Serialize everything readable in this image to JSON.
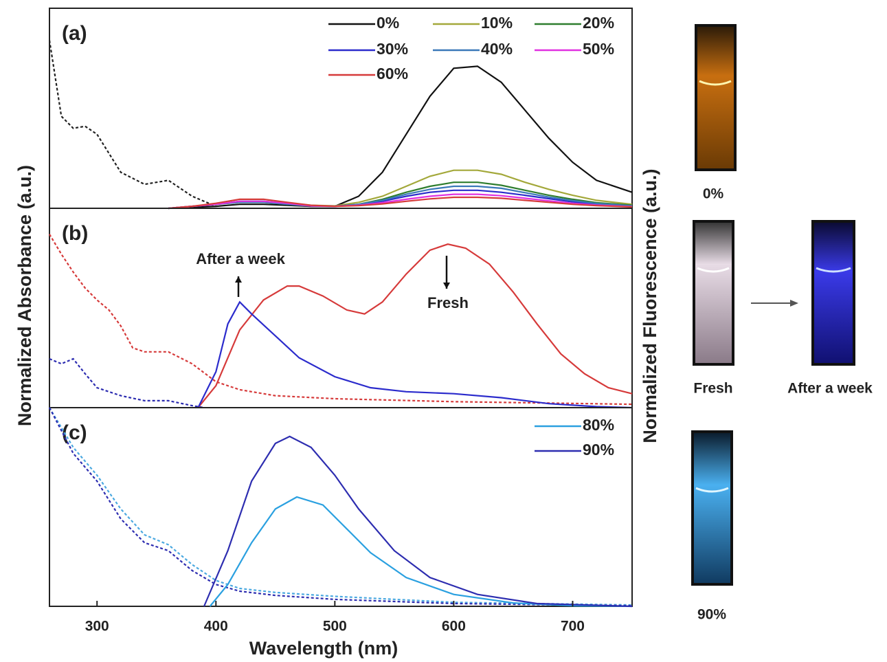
{
  "chart_data": [
    {
      "type": "line",
      "panel_label": "(a)",
      "xlim": [
        260,
        750
      ],
      "ylim": [
        0,
        1
      ],
      "series": [
        {
          "color": "#222222",
          "dash": true,
          "x": [
            260,
            270,
            280,
            290,
            300,
            320,
            340,
            360,
            380,
            400
          ],
          "values": [
            0.84,
            0.46,
            0.4,
            0.41,
            0.37,
            0.18,
            0.12,
            0.14,
            0.06,
            0.01
          ]
        },
        {
          "name": "0%",
          "color": "#111111",
          "x": [
            360,
            380,
            400,
            420,
            440,
            460,
            480,
            500,
            520,
            540,
            560,
            580,
            600,
            620,
            640,
            660,
            680,
            700,
            720,
            750
          ],
          "values": [
            0,
            0.005,
            0.01,
            0.02,
            0.02,
            0.015,
            0.01,
            0.01,
            0.06,
            0.18,
            0.37,
            0.56,
            0.7,
            0.71,
            0.63,
            0.49,
            0.35,
            0.23,
            0.14,
            0.08
          ]
        },
        {
          "name": "10%",
          "color": "#a3a83a",
          "x": [
            360,
            380,
            400,
            420,
            440,
            460,
            480,
            500,
            520,
            540,
            560,
            580,
            600,
            620,
            640,
            660,
            680,
            700,
            720,
            750
          ],
          "values": [
            0,
            0.01,
            0.02,
            0.035,
            0.035,
            0.025,
            0.015,
            0.012,
            0.03,
            0.06,
            0.11,
            0.16,
            0.19,
            0.19,
            0.17,
            0.13,
            0.095,
            0.065,
            0.04,
            0.02
          ]
        },
        {
          "name": "20%",
          "color": "#2e7d2e",
          "x": [
            360,
            380,
            400,
            420,
            440,
            460,
            480,
            500,
            520,
            540,
            560,
            580,
            600,
            620,
            640,
            660,
            680,
            700,
            720,
            750
          ],
          "values": [
            0,
            0.01,
            0.02,
            0.03,
            0.03,
            0.02,
            0.012,
            0.01,
            0.02,
            0.045,
            0.08,
            0.11,
            0.13,
            0.13,
            0.115,
            0.09,
            0.065,
            0.045,
            0.028,
            0.015
          ]
        },
        {
          "name": "30%",
          "color": "#2b2bcc",
          "x": [
            360,
            380,
            400,
            420,
            440,
            460,
            480,
            500,
            520,
            540,
            560,
            580,
            600,
            620,
            640,
            660,
            680,
            700,
            720,
            750
          ],
          "values": [
            0,
            0.01,
            0.02,
            0.035,
            0.035,
            0.025,
            0.012,
            0.01,
            0.018,
            0.035,
            0.06,
            0.08,
            0.09,
            0.09,
            0.08,
            0.065,
            0.048,
            0.032,
            0.02,
            0.01
          ]
        },
        {
          "name": "40%",
          "color": "#3a78b8",
          "x": [
            360,
            380,
            400,
            420,
            440,
            460,
            480,
            500,
            520,
            540,
            560,
            580,
            600,
            620,
            640,
            660,
            680,
            700,
            720,
            750
          ],
          "values": [
            0,
            0.01,
            0.02,
            0.03,
            0.03,
            0.02,
            0.012,
            0.01,
            0.02,
            0.04,
            0.07,
            0.095,
            0.11,
            0.11,
            0.1,
            0.078,
            0.056,
            0.038,
            0.024,
            0.012
          ]
        },
        {
          "name": "50%",
          "color": "#e030e0",
          "x": [
            360,
            380,
            400,
            420,
            440,
            460,
            480,
            500,
            520,
            540,
            560,
            580,
            600,
            620,
            640,
            660,
            680,
            700,
            720,
            750
          ],
          "values": [
            0,
            0.01,
            0.02,
            0.035,
            0.035,
            0.025,
            0.012,
            0.01,
            0.015,
            0.028,
            0.045,
            0.06,
            0.07,
            0.07,
            0.063,
            0.05,
            0.037,
            0.025,
            0.016,
            0.008
          ]
        },
        {
          "name": "60%",
          "color": "#d63a3a",
          "x": [
            360,
            380,
            400,
            420,
            440,
            460,
            480,
            500,
            520,
            540,
            560,
            580,
            600,
            620,
            640,
            660,
            680,
            700,
            720,
            750
          ],
          "values": [
            0,
            0.01,
            0.025,
            0.045,
            0.045,
            0.03,
            0.015,
            0.01,
            0.013,
            0.022,
            0.035,
            0.047,
            0.055,
            0.055,
            0.05,
            0.04,
            0.03,
            0.02,
            0.013,
            0.007
          ]
        }
      ]
    },
    {
      "type": "line",
      "panel_label": "(b)",
      "xlim": [
        260,
        750
      ],
      "ylim": [
        0,
        1
      ],
      "ylabel": "Normalized Absorbance (a.u.)",
      "y2label": "Normalized Fluorescence (a.u.)",
      "annotations": [
        "After a week",
        "Fresh"
      ],
      "series": [
        {
          "color": "#d63a3a",
          "dash": true,
          "x": [
            260,
            270,
            280,
            290,
            300,
            310,
            320,
            330,
            340,
            360,
            380,
            400,
            420,
            450,
            500,
            600,
            750
          ],
          "values": [
            0.87,
            0.77,
            0.68,
            0.6,
            0.54,
            0.49,
            0.41,
            0.3,
            0.28,
            0.28,
            0.22,
            0.13,
            0.09,
            0.06,
            0.045,
            0.03,
            0.017
          ]
        },
        {
          "color": "#2b2bb0",
          "dash": true,
          "x": [
            260,
            270,
            280,
            290,
            300,
            320,
            340,
            360,
            380,
            390
          ],
          "values": [
            0.245,
            0.22,
            0.245,
            0.17,
            0.1,
            0.06,
            0.035,
            0.035,
            0.01,
            0
          ]
        },
        {
          "color": "#d63a3a",
          "x": [
            385,
            400,
            420,
            440,
            460,
            470,
            490,
            510,
            525,
            540,
            560,
            580,
            595,
            610,
            630,
            650,
            670,
            690,
            710,
            730,
            750
          ],
          "values": [
            0,
            0.11,
            0.39,
            0.54,
            0.61,
            0.61,
            0.56,
            0.49,
            0.47,
            0.53,
            0.67,
            0.79,
            0.82,
            0.8,
            0.72,
            0.58,
            0.42,
            0.27,
            0.17,
            0.1,
            0.07
          ]
        },
        {
          "color": "#2b2bcc",
          "x": [
            385,
            400,
            410,
            420,
            430,
            450,
            470,
            500,
            530,
            560,
            600,
            640,
            680,
            720,
            750
          ],
          "values": [
            0,
            0.18,
            0.42,
            0.53,
            0.47,
            0.36,
            0.25,
            0.155,
            0.1,
            0.08,
            0.07,
            0.05,
            0.02,
            0.005,
            0
          ]
        }
      ]
    },
    {
      "type": "line",
      "panel_label": "(c)",
      "xlim": [
        260,
        750
      ],
      "ylim": [
        0,
        1
      ],
      "xlabel": "Wavelength (nm)",
      "xticks": [
        300,
        400,
        500,
        600,
        700
      ],
      "series": [
        {
          "color": "#4aa8e0",
          "dash": true,
          "x": [
            260,
            280,
            300,
            320,
            340,
            360,
            380,
            400,
            420,
            450,
            500,
            600,
            750
          ],
          "values": [
            1,
            0.8,
            0.66,
            0.49,
            0.36,
            0.31,
            0.21,
            0.13,
            0.09,
            0.07,
            0.05,
            0.02,
            0.007
          ]
        },
        {
          "color": "#2d2db0",
          "dash": true,
          "x": [
            260,
            280,
            300,
            320,
            340,
            360,
            380,
            400,
            420,
            450,
            500,
            600,
            750
          ],
          "values": [
            1,
            0.77,
            0.63,
            0.44,
            0.32,
            0.28,
            0.18,
            0.11,
            0.076,
            0.055,
            0.035,
            0.014,
            0.003
          ]
        },
        {
          "name": "80%",
          "color": "#2aa0e0",
          "x": [
            395,
            410,
            430,
            450,
            468,
            490,
            510,
            530,
            560,
            600,
            650,
            700,
            750
          ],
          "values": [
            0,
            0.11,
            0.32,
            0.49,
            0.55,
            0.51,
            0.39,
            0.27,
            0.145,
            0.06,
            0.017,
            0.003,
            0
          ]
        },
        {
          "name": "90%",
          "color": "#2d2db0",
          "x": [
            390,
            410,
            430,
            450,
            462,
            480,
            500,
            520,
            550,
            580,
            620,
            670,
            750
          ],
          "values": [
            0,
            0.28,
            0.63,
            0.82,
            0.855,
            0.8,
            0.66,
            0.49,
            0.28,
            0.145,
            0.06,
            0.014,
            0
          ]
        }
      ]
    }
  ],
  "photos": {
    "captions": [
      "0%",
      "Fresh",
      "After a week",
      "90%"
    ]
  }
}
